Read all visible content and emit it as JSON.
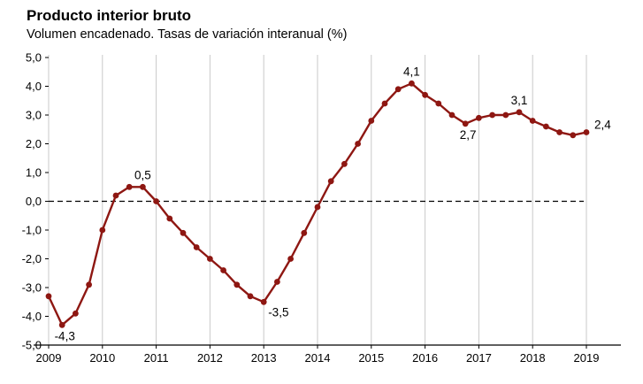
{
  "header": {
    "title": "Producto interior bruto",
    "subtitle": "Volumen encadenado. Tasas de variación interanual (%)"
  },
  "chart_data": {
    "type": "line",
    "title": "Producto interior bruto",
    "subtitle": "Volumen encadenado. Tasas de variación interanual (%)",
    "frequency": "quarterly",
    "ylim": [
      -5.0,
      5.0
    ],
    "grid": "vertical-only",
    "zero_line": "dashed-black",
    "x_tick_labels": [
      "2009",
      "2010",
      "2011",
      "2012",
      "2013",
      "2014",
      "2015",
      "2016",
      "2017",
      "2018",
      "2019"
    ],
    "y_ticks": [
      5,
      4,
      3,
      2,
      1,
      0,
      -1,
      -2,
      -3,
      -4,
      -5
    ],
    "y_tick_labels": [
      "5,0",
      "4,0",
      "3,0",
      "2,0",
      "1,0",
      "0,0",
      "-1,0",
      "-2,0",
      "-3,0",
      "-4,0",
      "-5,0"
    ],
    "x": [
      "2009T1",
      "2009T2",
      "2009T3",
      "2009T4",
      "2010T1",
      "2010T2",
      "2010T3",
      "2010T4",
      "2011T1",
      "2011T2",
      "2011T3",
      "2011T4",
      "2012T1",
      "2012T2",
      "2012T3",
      "2012T4",
      "2013T1",
      "2013T2",
      "2013T3",
      "2013T4",
      "2014T1",
      "2014T2",
      "2014T3",
      "2014T4",
      "2015T1",
      "2015T2",
      "2015T3",
      "2015T4",
      "2016T1",
      "2016T2",
      "2016T3",
      "2016T4",
      "2017T1",
      "2017T2",
      "2017T3",
      "2017T4",
      "2018T1",
      "2018T2",
      "2018T3",
      "2018T4",
      "2019T1"
    ],
    "series": [
      {
        "name": "PIB tasa de variación interanual (%)",
        "color": "#8e1712",
        "values": [
          -3.3,
          -4.3,
          -3.9,
          -2.9,
          -1.0,
          0.2,
          0.5,
          0.5,
          0.0,
          -0.6,
          -1.1,
          -1.6,
          -2.0,
          -2.4,
          -2.9,
          -3.3,
          -3.5,
          -2.8,
          -2.0,
          -1.1,
          -0.2,
          0.7,
          1.3,
          2.0,
          2.8,
          3.4,
          3.9,
          4.1,
          3.7,
          3.4,
          3.0,
          2.7,
          2.9,
          3.0,
          3.0,
          3.1,
          2.8,
          2.6,
          2.4,
          2.3,
          2.4
        ]
      }
    ],
    "annotations": [
      {
        "x": "2009T2",
        "index": 1,
        "text": "-4,3",
        "position": "below"
      },
      {
        "x": "2010T4",
        "index": 7,
        "text": "0,5",
        "position": "above"
      },
      {
        "x": "2013T1",
        "index": 16,
        "text": "-3,5",
        "position": "below-right"
      },
      {
        "x": "2015T4",
        "index": 27,
        "text": "4,1",
        "position": "above"
      },
      {
        "x": "2016T4",
        "index": 31,
        "text": "2,7",
        "position": "below"
      },
      {
        "x": "2017T4",
        "index": 35,
        "text": "3,1",
        "position": "above"
      },
      {
        "x": "2019T1",
        "index": 40,
        "text": "2,4",
        "position": "right"
      }
    ],
    "legend": "none"
  },
  "colors": {
    "line": "#8e1712",
    "gridline": "#c9c9c9",
    "axis": "#000000",
    "background": "#ffffff"
  }
}
